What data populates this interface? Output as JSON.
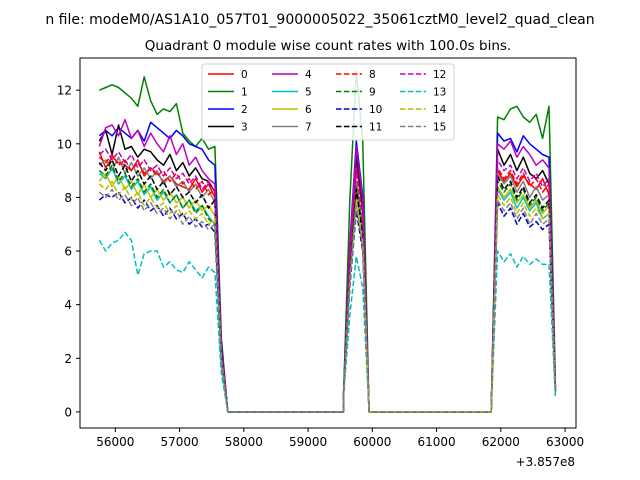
{
  "figure": {
    "suptitle": "n file: modeM0/AS1A10_057T01_9000005022_35061cztM0_level2_quad_clean",
    "title": "Quadrant 0 module wise count rates with 100.0s bins.",
    "offset_label": "+3.857e8"
  },
  "chart_data": {
    "type": "line",
    "title": "Quadrant 0 module wise count rates with 100.0s bins.",
    "xlabel": "",
    "ylabel": "",
    "x_offset": 385700000,
    "xlim": [
      55450,
      63170
    ],
    "ylim": [
      -0.6,
      13.2
    ],
    "xticks": [
      56000,
      57000,
      58000,
      59000,
      60000,
      61000,
      62000,
      63000
    ],
    "yticks": [
      0,
      2,
      4,
      6,
      8,
      10,
      12
    ],
    "grid": false,
    "legend": {
      "placement": "top-center",
      "columns": 4
    },
    "x": {
      "segment1_start": 55750,
      "segment1_step": 100,
      "segment1_count": 19,
      "drop_points": [
        57650,
        57750
      ],
      "zero_run_1": [
        57750,
        59550
      ],
      "spike": [
        59550,
        59650,
        59750,
        59850,
        59950
      ],
      "zero_run_2": [
        59950,
        61850
      ],
      "segment2_start": 61950,
      "segment2_step": 100,
      "segment2_count": 9,
      "end_point": 62850
    },
    "series": [
      {
        "name": "0",
        "color": "#ff0000",
        "dash": "solid",
        "seg1": [
          9.7,
          9.1,
          9.5,
          9.3,
          9.2,
          9.0,
          9.4,
          8.8,
          9.1,
          8.9,
          8.6,
          8.8,
          8.5,
          8.4,
          8.3,
          8.7,
          8.2,
          8.5,
          8.0
        ],
        "spike": 9.3,
        "seg2": [
          9.0,
          8.6,
          8.9,
          8.4,
          8.8,
          8.5,
          8.3,
          8.7,
          8.1
        ]
      },
      {
        "name": "1",
        "color": "#008000",
        "dash": "solid",
        "seg1": [
          12.0,
          12.1,
          12.2,
          12.1,
          11.9,
          11.7,
          11.4,
          12.5,
          11.6,
          11.1,
          11.3,
          11.2,
          11.5,
          10.4,
          10.1,
          9.9,
          10.2,
          9.8,
          9.9
        ],
        "spike": 12.7,
        "seg2": [
          11.0,
          10.9,
          11.3,
          11.4,
          11.0,
          10.8,
          11.1,
          10.2,
          11.4
        ]
      },
      {
        "name": "2",
        "color": "#0000ff",
        "dash": "solid",
        "seg1": [
          10.3,
          10.5,
          10.3,
          10.6,
          10.4,
          10.2,
          10.5,
          10.1,
          10.8,
          10.6,
          10.4,
          10.2,
          10.5,
          10.3,
          10.0,
          9.9,
          9.8,
          9.4,
          9.2
        ],
        "spike": 10.1,
        "seg2": [
          10.4,
          10.1,
          10.2,
          9.7,
          10.3,
          10.0,
          9.8,
          9.6,
          9.5
        ]
      },
      {
        "name": "3",
        "color": "#000000",
        "dash": "solid",
        "seg1": [
          10.1,
          10.5,
          9.6,
          10.7,
          9.8,
          9.9,
          9.5,
          9.8,
          9.7,
          9.4,
          9.2,
          9.6,
          9.0,
          9.3,
          8.8,
          9.1,
          8.7,
          8.6,
          8.2
        ],
        "spike": 9.6,
        "seg2": [
          9.8,
          9.2,
          9.6,
          9.0,
          9.5,
          8.9,
          8.7,
          9.0,
          8.5
        ]
      },
      {
        "name": "4",
        "color": "#bf00bf",
        "dash": "solid",
        "seg1": [
          9.9,
          10.6,
          10.7,
          10.3,
          10.9,
          10.2,
          10.5,
          9.9,
          10.4,
          10.0,
          9.7,
          10.3,
          9.6,
          10.0,
          9.2,
          9.5,
          9.0,
          8.7,
          8.5
        ],
        "spike": 9.9,
        "seg2": [
          10.0,
          9.8,
          10.1,
          9.5,
          9.9,
          9.6,
          9.2,
          9.4,
          9.1
        ]
      },
      {
        "name": "5",
        "color": "#00bfbf",
        "dash": "solid",
        "seg1": [
          8.9,
          8.7,
          9.1,
          8.5,
          8.8,
          8.3,
          8.6,
          8.1,
          8.4,
          7.9,
          8.2,
          7.8,
          8.1,
          7.6,
          7.9,
          7.5,
          7.7,
          7.3,
          7.0
        ],
        "spike": 8.0,
        "seg2": [
          8.3,
          7.9,
          8.2,
          7.6,
          8.0,
          7.5,
          7.8,
          7.2,
          7.4
        ]
      },
      {
        "name": "6",
        "color": "#bfbf00",
        "dash": "solid",
        "seg1": [
          8.6,
          8.9,
          8.4,
          8.8,
          8.3,
          8.6,
          8.1,
          8.5,
          8.0,
          8.3,
          7.9,
          8.2,
          7.8,
          8.0,
          7.6,
          7.9,
          7.5,
          7.7,
          7.3
        ],
        "spike": 8.1,
        "seg2": [
          8.4,
          8.0,
          8.3,
          7.8,
          8.1,
          7.6,
          7.9,
          7.4,
          7.7
        ]
      },
      {
        "name": "7",
        "color": "#808080",
        "dash": "solid",
        "seg1": [
          9.2,
          9.4,
          9.0,
          9.5,
          8.9,
          9.3,
          8.8,
          9.1,
          8.7,
          9.0,
          8.5,
          8.8,
          8.4,
          8.6,
          8.2,
          8.5,
          8.0,
          8.3,
          7.8
        ],
        "spike": 8.6,
        "seg2": [
          8.9,
          8.5,
          8.8,
          8.2,
          8.6,
          8.0,
          8.4,
          7.9,
          8.1
        ]
      },
      {
        "name": "8",
        "color": "#ff0000",
        "dash": "dashed",
        "seg1": [
          9.5,
          9.3,
          9.6,
          9.2,
          9.4,
          9.0,
          9.3,
          8.9,
          9.1,
          8.8,
          9.0,
          8.6,
          8.9,
          8.5,
          8.7,
          8.3,
          8.6,
          8.1,
          8.3
        ],
        "spike": 9.0,
        "seg2": [
          9.1,
          8.7,
          9.0,
          8.5,
          8.9,
          8.4,
          8.7,
          8.2,
          8.5
        ]
      },
      {
        "name": "9",
        "color": "#008000",
        "dash": "dashed",
        "seg1": [
          9.0,
          8.8,
          9.2,
          8.6,
          8.9,
          8.4,
          8.7,
          8.2,
          8.5,
          8.0,
          8.3,
          7.8,
          8.1,
          7.6,
          7.9,
          7.4,
          7.7,
          7.2,
          7.0
        ],
        "spike": 8.4,
        "seg2": [
          8.6,
          8.2,
          8.5,
          7.9,
          8.3,
          7.7,
          8.0,
          7.5,
          7.8
        ]
      },
      {
        "name": "10",
        "color": "#0000bf",
        "dash": "dashed",
        "seg1": [
          7.9,
          8.1,
          8.0,
          8.2,
          7.8,
          8.0,
          7.6,
          7.9,
          7.5,
          7.7,
          7.3,
          7.6,
          7.2,
          7.4,
          7.0,
          7.2,
          6.9,
          7.0,
          6.7
        ],
        "spike": 7.5,
        "seg2": [
          7.8,
          7.3,
          7.6,
          7.0,
          7.4,
          6.9,
          7.1,
          6.8,
          7.0
        ]
      },
      {
        "name": "11",
        "color": "#000000",
        "dash": "dashed",
        "seg1": [
          9.3,
          9.0,
          9.4,
          8.8,
          9.2,
          8.6,
          9.0,
          8.5,
          8.8,
          8.3,
          8.6,
          8.1,
          8.4,
          8.0,
          8.2,
          7.8,
          8.1,
          7.6,
          7.9
        ],
        "spike": 8.3,
        "seg2": [
          8.8,
          8.3,
          8.6,
          8.0,
          8.4,
          7.8,
          8.1,
          7.6,
          7.9
        ]
      },
      {
        "name": "12",
        "color": "#bf00bf",
        "dash": "dashed",
        "seg1": [
          9.6,
          9.8,
          9.4,
          9.7,
          9.3,
          9.6,
          9.1,
          9.4,
          9.0,
          9.2,
          8.8,
          9.1,
          8.7,
          8.9,
          8.5,
          8.8,
          8.3,
          8.6,
          8.2
        ],
        "spike": 9.1,
        "seg2": [
          9.4,
          9.0,
          9.2,
          8.7,
          9.1,
          8.6,
          8.9,
          8.4,
          8.7
        ]
      },
      {
        "name": "13",
        "color": "#00bfbf",
        "dash": "dashed",
        "seg1": [
          6.4,
          6.0,
          6.3,
          6.4,
          6.7,
          6.4,
          5.1,
          5.9,
          6.0,
          6.0,
          5.4,
          5.6,
          5.3,
          5.2,
          5.6,
          5.3,
          5.0,
          5.4,
          5.2
        ],
        "spike": 5.8,
        "seg2": [
          6.0,
          5.6,
          5.9,
          5.4,
          5.8,
          5.5,
          5.7,
          5.5,
          5.5
        ]
      },
      {
        "name": "14",
        "color": "#bfbf00",
        "dash": "dashed",
        "seg1": [
          8.5,
          8.3,
          8.6,
          8.1,
          8.4,
          7.9,
          8.2,
          7.7,
          8.0,
          7.6,
          7.8,
          7.4,
          7.7,
          7.3,
          7.5,
          7.2,
          7.4,
          7.0,
          7.2
        ],
        "spike": 7.9,
        "seg2": [
          8.1,
          7.7,
          8.0,
          7.4,
          7.8,
          7.3,
          7.6,
          7.2,
          7.4
        ]
      },
      {
        "name": "15",
        "color": "#808080",
        "dash": "dashed",
        "seg1": [
          8.2,
          8.0,
          8.3,
          7.9,
          8.1,
          7.7,
          8.0,
          7.5,
          7.8,
          7.4,
          7.6,
          7.2,
          7.5,
          7.0,
          7.3,
          6.9,
          7.1,
          6.8,
          7.0
        ],
        "spike": 7.7,
        "seg2": [
          7.9,
          7.5,
          7.8,
          7.2,
          7.6,
          7.0,
          7.4,
          7.0,
          7.2
        ]
      }
    ]
  }
}
